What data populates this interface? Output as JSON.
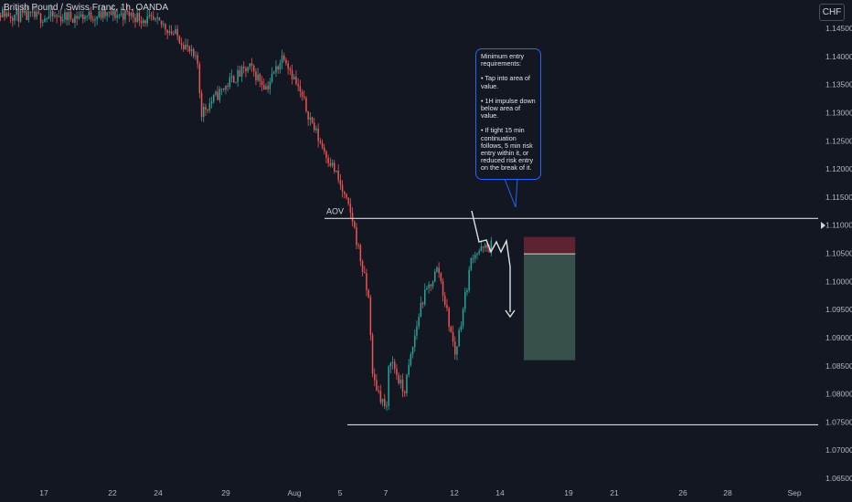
{
  "header": {
    "symbol_title": "British Pound / Swiss Franc, 1h, OANDA",
    "currency_badge": "CHF"
  },
  "price_axis": {
    "ticks": [
      "1.14500",
      "1.14000",
      "1.13500",
      "1.13000",
      "1.12500",
      "1.12000",
      "1.11500",
      "1.11000",
      "1.10500",
      "1.10000",
      "1.09500",
      "1.09000",
      "1.08500",
      "1.08000",
      "1.07500",
      "1.07000",
      "1.06500"
    ],
    "current_price_marker": "1.11000"
  },
  "time_axis": {
    "ticks": [
      "17",
      "22",
      "24",
      "29",
      "Aug",
      "5",
      "7",
      "12",
      "14",
      "19",
      "21",
      "26",
      "28",
      "Sep"
    ]
  },
  "annotations": {
    "aov_label": "AOV",
    "aov_level": 1.1112,
    "support_level": 1.0745,
    "callout_lines": [
      "Minimum entry requirements:",
      "• Tap into area of value.",
      "• 1H impulse down below area of value.",
      "• If tight 15 min continuation follows, 5 min risk entry within it, or reduced risk entry on the break of it."
    ],
    "short_position": {
      "entry": 1.1049,
      "stop": 1.1079,
      "target": 1.086,
      "start_date": "Aug 14",
      "end_date": "Aug 17"
    }
  },
  "colors": {
    "background": "#131722",
    "up": "#26a69a",
    "down": "#ef5350",
    "stop_zone": "#5d2330",
    "target_zone": "#37504c",
    "callout_border": "#2962ff"
  },
  "chart_data": {
    "type": "candlestick",
    "title": "British Pound / Swiss Franc, 1h, OANDA",
    "x_unit": "date",
    "y_unit": "CHF",
    "ylim": [
      1.0625,
      1.1485
    ],
    "path_anchors": [
      {
        "date": "Jul 14",
        "price": 1.148
      },
      {
        "date": "Jul 16",
        "price": 1.147
      },
      {
        "date": "Jul 18",
        "price": 1.147
      },
      {
        "date": "Jul 22",
        "price": 1.1475
      },
      {
        "date": "Jul 24",
        "price": 1.1455
      },
      {
        "date": "Jul 25",
        "price": 1.143
      },
      {
        "date": "Jul 26",
        "price": 1.1385
      },
      {
        "date": "Jul 26",
        "price": 1.13
      },
      {
        "date": "Jul 28",
        "price": 1.136
      },
      {
        "date": "Jul 29",
        "price": 1.138
      },
      {
        "date": "Jul 30",
        "price": 1.1345
      },
      {
        "date": "Jul 31",
        "price": 1.1405
      },
      {
        "date": "Aug 1",
        "price": 1.133
      },
      {
        "date": "Aug 2",
        "price": 1.1255
      },
      {
        "date": "Aug 3",
        "price": 1.1195
      },
      {
        "date": "Aug 4",
        "price": 1.111
      },
      {
        "date": "Aug 5",
        "price": 1.096
      },
      {
        "date": "Aug 5",
        "price": 1.083
      },
      {
        "date": "Aug 6",
        "price": 1.077
      },
      {
        "date": "Aug 6",
        "price": 1.087
      },
      {
        "date": "Aug 7",
        "price": 1.08
      },
      {
        "date": "Aug 8",
        "price": 1.096
      },
      {
        "date": "Aug 9",
        "price": 1.1025
      },
      {
        "date": "Aug 10",
        "price": 1.087
      },
      {
        "date": "Aug 11",
        "price": 1.105
      },
      {
        "date": "Aug 12",
        "price": 1.106
      },
      {
        "date": "Aug 12",
        "price": 1.107
      }
    ]
  }
}
